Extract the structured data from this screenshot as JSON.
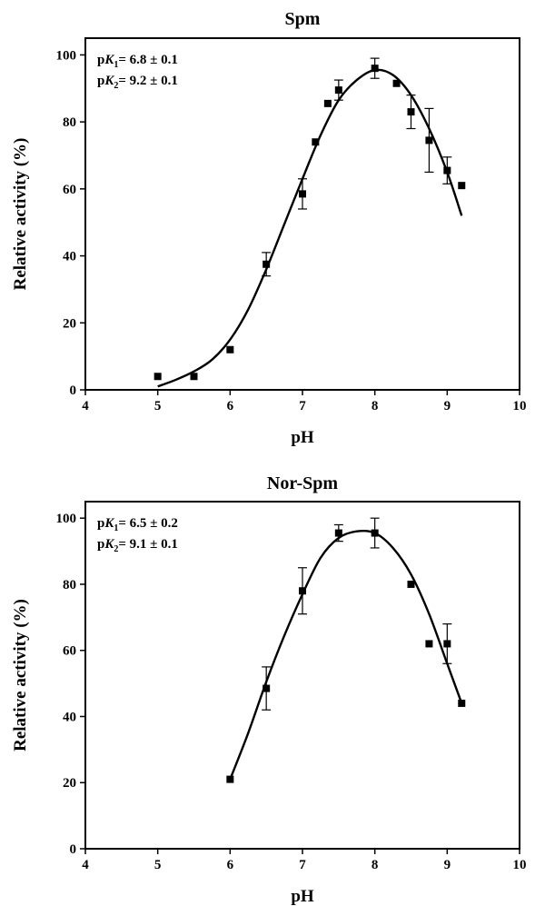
{
  "chart_data": [
    {
      "type": "scatter",
      "title": "Spm",
      "xlabel": "pH",
      "ylabel": "Relative activity (%)",
      "xlim": [
        4,
        10
      ],
      "ylim": [
        0,
        105
      ],
      "xticks": [
        4,
        5,
        6,
        7,
        8,
        9,
        10
      ],
      "yticks": [
        0,
        20,
        40,
        60,
        80,
        100
      ],
      "annotations": [
        {
          "p": "p",
          "var": "K",
          "sub": "1",
          "rest": "= 6.8 ± 0.1"
        },
        {
          "p": "p",
          "var": "K",
          "sub": "2",
          "rest": "= 9.2 ± 0.1"
        }
      ],
      "series": [
        {
          "x": [
            5.0,
            5.5,
            6.0,
            6.5,
            7.0,
            7.18,
            7.35,
            7.5,
            8.0,
            8.3,
            8.5,
            8.75,
            9.0,
            9.2
          ],
          "y": [
            4,
            4,
            12,
            37.5,
            58.5,
            74,
            85.5,
            89.5,
            96,
            91.5,
            83,
            74.5,
            65.5,
            61
          ],
          "err": [
            0,
            0,
            0,
            3.5,
            4.5,
            0,
            0,
            3,
            3,
            0,
            5,
            9.5,
            4,
            0
          ]
        }
      ],
      "fit_curve": {
        "x": [
          5.0,
          5.25,
          5.5,
          5.75,
          6.0,
          6.25,
          6.5,
          6.75,
          7.0,
          7.25,
          7.5,
          7.75,
          8.0,
          8.25,
          8.5,
          8.75,
          9.0,
          9.2
        ],
        "y": [
          1,
          3,
          5.5,
          9,
          15,
          24,
          36,
          49.5,
          63,
          76,
          86.5,
          92.5,
          95.5,
          94,
          88,
          78,
          65,
          52
        ]
      }
    },
    {
      "type": "scatter",
      "title": "Nor-Spm",
      "xlabel": "pH",
      "ylabel": "Relative activity (%)",
      "xlim": [
        4,
        10
      ],
      "ylim": [
        0,
        105
      ],
      "xticks": [
        4,
        5,
        6,
        7,
        8,
        9,
        10
      ],
      "yticks": [
        0,
        20,
        40,
        60,
        80,
        100
      ],
      "annotations": [
        {
          "p": "p",
          "var": "K",
          "sub": "1",
          "rest": "= 6.5 ± 0.2"
        },
        {
          "p": "p",
          "var": "K",
          "sub": "2",
          "rest": "= 9.1 ± 0.1"
        }
      ],
      "series": [
        {
          "x": [
            6.0,
            6.5,
            7.0,
            7.5,
            8.0,
            8.5,
            8.75,
            9.0,
            9.2
          ],
          "y": [
            21,
            48.5,
            78,
            95.5,
            95.5,
            80,
            62,
            62,
            44
          ],
          "err": [
            0,
            6.5,
            7,
            2.5,
            4.5,
            0,
            0,
            6,
            0
          ]
        }
      ],
      "fit_curve": {
        "x": [
          6.0,
          6.25,
          6.5,
          6.75,
          7.0,
          7.25,
          7.5,
          7.75,
          8.0,
          8.25,
          8.5,
          8.75,
          9.0,
          9.2
        ],
        "y": [
          21,
          35,
          50.5,
          64.5,
          77,
          88,
          94,
          96,
          95.5,
          91,
          83,
          71,
          56,
          44
        ]
      }
    }
  ]
}
